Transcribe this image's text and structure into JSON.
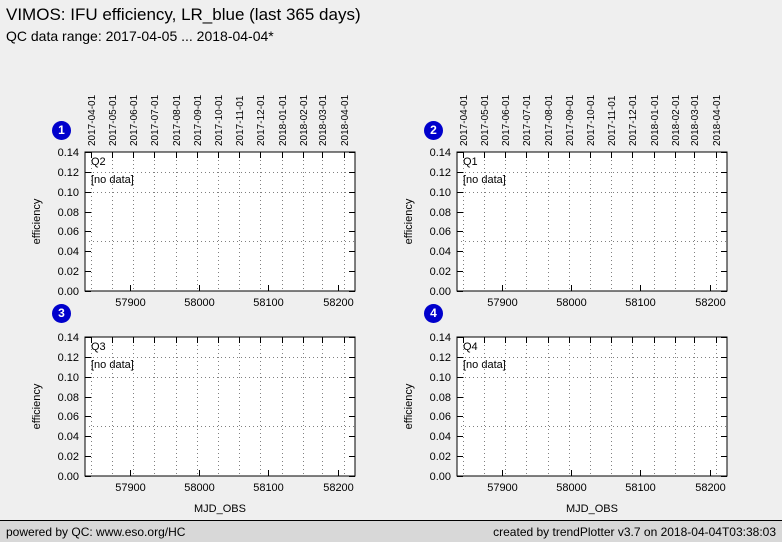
{
  "page": {
    "title": "VIMOS: IFU efficiency, LR_blue (last 365 days)",
    "subtitle": "QC data range: 2017-04-05 ... 2018-04-04*"
  },
  "footer": {
    "left": "powered by QC: www.eso.org/HC",
    "right": "created by trendPlotter v3.7 on 2018-04-04T03:38:03"
  },
  "colors": {
    "background": "#efefef",
    "plot_background": "#ffffff",
    "badge": "#0000cc",
    "grid": "#808080",
    "axis": "#000000",
    "footer_background": "#d8d8d8"
  },
  "chart_data": {
    "layout": "2x2",
    "type": "scatter",
    "shared": {
      "ylabel": "efficiency",
      "xlabel": "MJD_OBS",
      "xlim": [
        57835,
        58225
      ],
      "ylim": [
        0.0,
        0.14
      ],
      "x_ticks": [
        "57900",
        "58000",
        "58100",
        "58200"
      ],
      "x_tick_values": [
        57900,
        58000,
        58100,
        58200
      ],
      "y_ticks": [
        "0.00",
        "0.02",
        "0.04",
        "0.06",
        "0.08",
        "0.10",
        "0.12",
        "0.14"
      ],
      "y_tick_values": [
        0.0,
        0.02,
        0.04,
        0.06,
        0.08,
        0.1,
        0.12,
        0.14
      ],
      "date_ticks": [
        {
          "label": "2017-04-01",
          "mjd": 57844
        },
        {
          "label": "2017-05-01",
          "mjd": 57874
        },
        {
          "label": "2017-06-01",
          "mjd": 57905
        },
        {
          "label": "2017-07-01",
          "mjd": 57935
        },
        {
          "label": "2017-08-01",
          "mjd": 57966
        },
        {
          "label": "2017-09-01",
          "mjd": 57997
        },
        {
          "label": "2017-10-01",
          "mjd": 58027
        },
        {
          "label": "2017-11-01",
          "mjd": 58058
        },
        {
          "label": "2017-12-01",
          "mjd": 58088
        },
        {
          "label": "2018-01-01",
          "mjd": 58119
        },
        {
          "label": "2018-02-01",
          "mjd": 58150
        },
        {
          "label": "2018-03-01",
          "mjd": 58178
        },
        {
          "label": "2018-04-01",
          "mjd": 58209
        }
      ],
      "dotted_hlines": [
        0.12,
        0.1,
        0.05
      ],
      "grid": "dotted-vertical-at-month-starts"
    },
    "panels": [
      {
        "badge": "1",
        "quadrant_label": "Q2",
        "annotation": "[no data]",
        "points": [],
        "show_date_axis": true,
        "show_xlabel": false
      },
      {
        "badge": "2",
        "quadrant_label": "Q1",
        "annotation": "[no data]",
        "points": [],
        "show_date_axis": true,
        "show_xlabel": false
      },
      {
        "badge": "3",
        "quadrant_label": "Q3",
        "annotation": "[no data]",
        "points": [],
        "show_date_axis": false,
        "show_xlabel": true
      },
      {
        "badge": "4",
        "quadrant_label": "Q4",
        "annotation": "[no data]",
        "points": [],
        "show_date_axis": false,
        "show_xlabel": true
      }
    ]
  }
}
